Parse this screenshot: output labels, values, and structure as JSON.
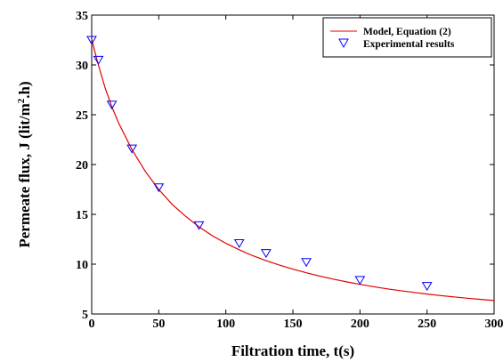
{
  "chart_data": {
    "type": "scatter",
    "xlabel": "Filtration time, t(s)",
    "ylabel_main": "Permeate flux, J (lit/m",
    "ylabel_sup": "2",
    "ylabel_tail": ".h)",
    "xlim": [
      0,
      300
    ],
    "ylim": [
      5,
      35
    ],
    "xticks": [
      0,
      50,
      100,
      150,
      200,
      250,
      300
    ],
    "yticks": [
      5,
      10,
      15,
      20,
      25,
      30,
      35
    ],
    "grid": false,
    "legend_position": "top-right",
    "series": [
      {
        "name": "Model, Equation (2)",
        "kind": "line",
        "color": "#e00000",
        "x": [
          0,
          2,
          5,
          10,
          15,
          20,
          30,
          40,
          50,
          60,
          70,
          80,
          90,
          100,
          110,
          120,
          130,
          140,
          150,
          160,
          170,
          180,
          190,
          200,
          210,
          220,
          230,
          240,
          250,
          260,
          270,
          280,
          290,
          300
        ],
        "y": [
          32.6,
          31.5,
          30.0,
          27.7,
          25.8,
          24.2,
          21.5,
          19.3,
          17.5,
          16.0,
          14.8,
          13.75,
          12.85,
          12.1,
          11.45,
          10.85,
          10.35,
          9.9,
          9.5,
          9.13,
          8.8,
          8.5,
          8.22,
          7.97,
          7.74,
          7.53,
          7.34,
          7.17,
          7.0,
          6.85,
          6.71,
          6.58,
          6.46,
          6.35
        ]
      },
      {
        "name": "Experimental results",
        "kind": "marker",
        "marker": "triangle-down",
        "color": "#0000ff",
        "x": [
          0,
          5,
          15,
          30,
          50,
          80,
          110,
          130,
          160,
          200,
          250
        ],
        "y": [
          32.5,
          30.5,
          26.0,
          21.6,
          17.7,
          13.9,
          12.1,
          11.1,
          10.2,
          8.4,
          7.8
        ]
      }
    ]
  }
}
